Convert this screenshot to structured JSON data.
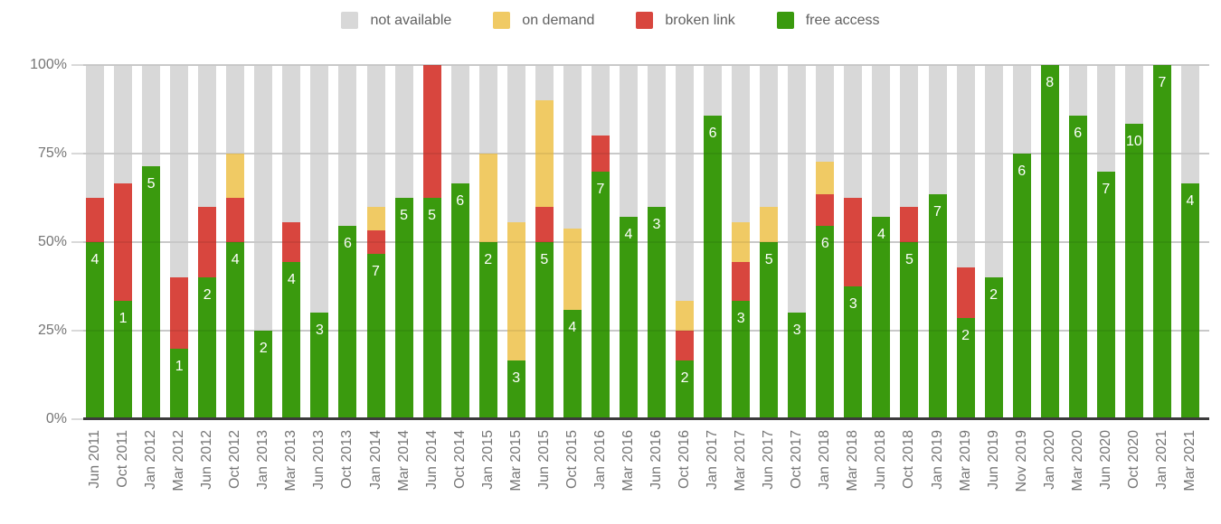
{
  "chart_data": {
    "type": "bar",
    "stacked": true,
    "percent": true,
    "title": "",
    "xlabel": "",
    "ylabel": "",
    "ylim": [
      0,
      100
    ],
    "grid": true,
    "legend_position": "top",
    "legend_order": [
      "not available",
      "on demand",
      "broken link",
      "free access"
    ],
    "bar_labels_series": "free access",
    "yticks": [
      "0%",
      "25%",
      "50%",
      "75%",
      "100%"
    ],
    "categories": [
      "Jun 2011",
      "Oct 2011",
      "Jan 2012",
      "Mar 2012",
      "Jun 2012",
      "Oct 2012",
      "Jan 2013",
      "Mar 2013",
      "Jun 2013",
      "Oct 2013",
      "Jan 2014",
      "Mar 2014",
      "Jun 2014",
      "Oct 2014",
      "Jan 2015",
      "Mar 2015",
      "Jun 2015",
      "Oct 2015",
      "Jan 2016",
      "Mar 2016",
      "Jun 2016",
      "Oct 2016",
      "Jan 2017",
      "Mar 2017",
      "Jun 2017",
      "Oct 2017",
      "Jan 2018",
      "Mar 2018",
      "Jun 2018",
      "Oct 2018",
      "Jan 2019",
      "Mar 2019",
      "Jun 2019",
      "Nov 2019",
      "Jan 2020",
      "Mar 2020",
      "Jun 2020",
      "Oct 2020",
      "Jan 2021",
      "Mar 2021"
    ],
    "series": [
      {
        "name": "free access",
        "color": "#3a9a0e",
        "values": [
          4,
          1,
          5,
          1,
          2,
          4,
          2,
          4,
          3,
          6,
          7,
          5,
          5,
          6,
          2,
          3,
          5,
          4,
          7,
          4,
          3,
          2,
          6,
          3,
          5,
          3,
          6,
          3,
          4,
          5,
          7,
          2,
          2,
          6,
          8,
          6,
          7,
          10,
          7,
          4
        ]
      },
      {
        "name": "broken link",
        "color": "#d8463e",
        "values": [
          1,
          1,
          0,
          1,
          1,
          1,
          0,
          1,
          0,
          0,
          1,
          0,
          3,
          0,
          0,
          0,
          1,
          0,
          1,
          0,
          0,
          1,
          0,
          1,
          0,
          0,
          1,
          2,
          0,
          1,
          0,
          1,
          0,
          0,
          0,
          0,
          0,
          0,
          0,
          0
        ]
      },
      {
        "name": "on demand",
        "color": "#f0ca64",
        "values": [
          0,
          0,
          0,
          0,
          0,
          1,
          0,
          0,
          0,
          0,
          1,
          0,
          0,
          0,
          1,
          7,
          3,
          3,
          0,
          0,
          0,
          1,
          0,
          1,
          1,
          0,
          1,
          0,
          0,
          0,
          0,
          0,
          0,
          0,
          0,
          0,
          0,
          0,
          0,
          0
        ]
      },
      {
        "name": "not available",
        "color": "#d8d8d8",
        "values": [
          3,
          1,
          2,
          3,
          2,
          2,
          6,
          4,
          7,
          5,
          6,
          3,
          0,
          3,
          1,
          8,
          1,
          6,
          2,
          3,
          2,
          8,
          1,
          4,
          4,
          7,
          3,
          3,
          3,
          4,
          4,
          4,
          3,
          2,
          0,
          1,
          3,
          2,
          0,
          2
        ]
      }
    ]
  },
  "colors": {
    "background": "#ffffff",
    "axis_text": "#757575",
    "legend_text": "#616161",
    "gridline": "#d9d9d9",
    "baseline": "#3b3b3b",
    "bar_label_text": "#ffffff"
  }
}
